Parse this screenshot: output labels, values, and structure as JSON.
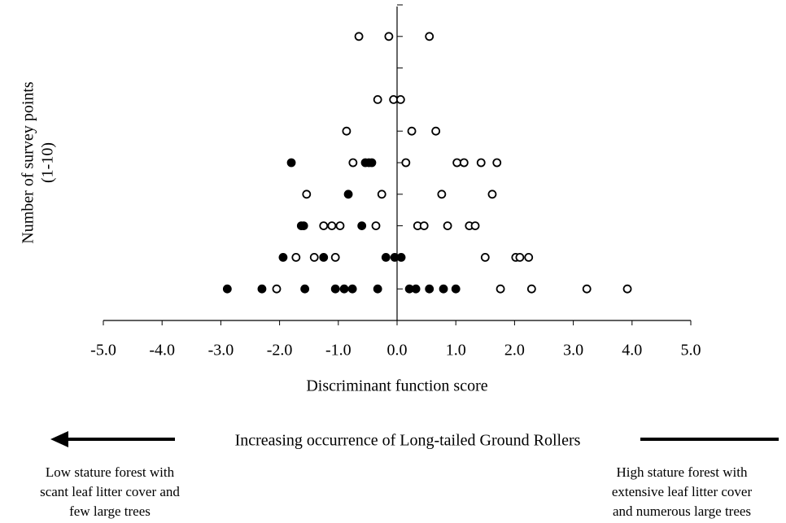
{
  "chart_data": {
    "type": "scatter",
    "xlabel": "Discriminant function score",
    "ylabel": [
      "Number of survey points",
      "(1-10)"
    ],
    "xlim": [
      -5,
      5
    ],
    "xticks": [
      {
        "value": -5,
        "label": "-5.0"
      },
      {
        "value": -4,
        "label": "-4.0"
      },
      {
        "value": -3,
        "label": "-3.0"
      },
      {
        "value": -2,
        "label": "-2.0"
      },
      {
        "value": -1,
        "label": "-1.0"
      },
      {
        "value": 0,
        "label": "0.0"
      },
      {
        "value": 1,
        "label": "1.0"
      },
      {
        "value": 2,
        "label": "2.0"
      },
      {
        "value": 3,
        "label": "3.0"
      },
      {
        "value": 4,
        "label": "4.0"
      },
      {
        "value": 5,
        "label": "5.0"
      }
    ],
    "ylim": [
      0,
      10
    ],
    "yticks": [
      1,
      2,
      3,
      4,
      5,
      6,
      7,
      8,
      9,
      10
    ],
    "series": [
      {
        "color": "#000000",
        "filled": false,
        "x": [
          -0.65,
          -0.14,
          0.55,
          -0.33,
          -0.06,
          0.06,
          -0.86,
          0.25,
          0.66,
          -0.75,
          0.15,
          1.02,
          1.14,
          1.43,
          1.7,
          -1.54,
          -0.26,
          0.76,
          1.62,
          -1.25,
          -1.11,
          -0.97,
          -0.36,
          0.35,
          0.46,
          0.86,
          1.23,
          1.33,
          -1.72,
          -1.41,
          -1.05,
          1.5,
          2.02,
          2.09,
          2.24,
          -2.05,
          1.76,
          2.29,
          3.23,
          3.92
        ],
        "values": [
          9,
          9,
          9,
          7,
          7,
          7,
          6,
          6,
          6,
          5,
          5,
          5,
          5,
          5,
          5,
          4,
          4,
          4,
          4,
          3,
          3,
          3,
          3,
          3,
          3,
          3,
          3,
          3,
          2,
          2,
          2,
          2,
          2,
          2,
          2,
          1,
          1,
          1,
          1,
          1
        ]
      },
      {
        "color": "#000000",
        "filled": true,
        "x": [
          -1.8,
          -0.54,
          -0.48,
          -0.43,
          -0.83,
          -1.63,
          -1.59,
          -0.6,
          -1.94,
          -1.25,
          -0.19,
          -0.04,
          0.07,
          -2.89,
          -2.3,
          -1.57,
          -1.05,
          -0.9,
          -0.76,
          -0.33,
          0.21,
          0.32,
          0.55,
          0.79,
          1.0
        ],
        "values": [
          5,
          5,
          5,
          5,
          4,
          3,
          3,
          3,
          2,
          2,
          2,
          2,
          2,
          1,
          1,
          1,
          1,
          1,
          1,
          1,
          1,
          1,
          1,
          1,
          1
        ]
      }
    ]
  },
  "annotations": {
    "arrow_text": "Increasing occurrence of Long-tailed Ground Rollers",
    "left_note": [
      "Low stature forest with",
      "scant leaf litter cover and",
      "few large trees"
    ],
    "right_note": [
      "High stature forest with",
      "extensive leaf litter cover",
      "and numerous large trees"
    ]
  }
}
